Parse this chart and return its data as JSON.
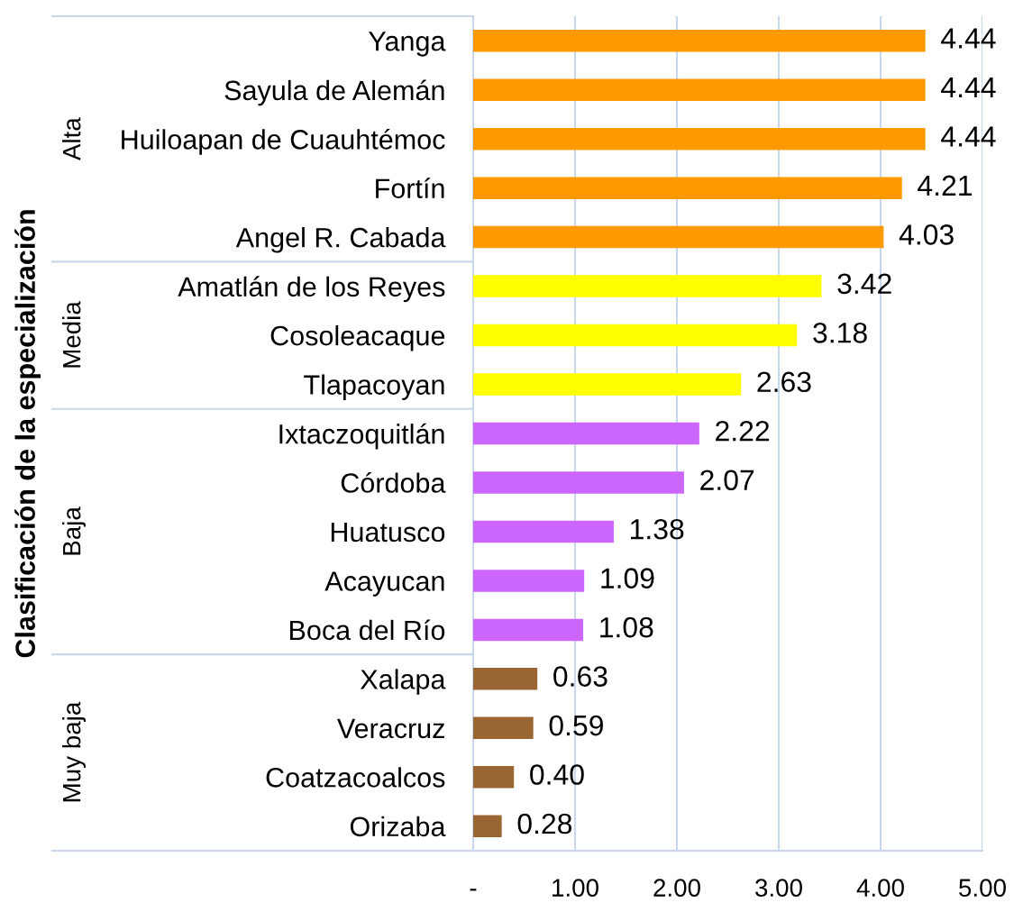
{
  "chart_data": {
    "type": "bar",
    "orientation": "horizontal",
    "ylabel": "Clasificación de la especialización",
    "categories": [
      "Yanga",
      "Sayula de Alemán",
      "Huiloapan de Cuauhtémoc",
      "Fortín",
      "Angel R. Cabada",
      "Amatlán de los Reyes",
      "Cosoleacaque",
      "Tlapacoyan",
      "Ixtaczoquitlán",
      "Córdoba",
      "Huatusco",
      "Acayucan",
      "Boca del Río",
      "Xalapa",
      "Veracruz",
      "Coatzacoalcos",
      "Orizaba"
    ],
    "series": [
      {
        "color": "#ff9900",
        "values": [
          4.44,
          4.44,
          4.44,
          4.21,
          4.03,
          null,
          null,
          null,
          null,
          null,
          null,
          null,
          null,
          null,
          null,
          null,
          null
        ],
        "value_labels": [
          "4.44",
          "4.44",
          "4.44",
          "4.21",
          "4.03",
          null,
          null,
          null,
          null,
          null,
          null,
          null,
          null,
          null,
          null,
          null,
          null
        ]
      },
      {
        "color": "#ffff00",
        "values": [
          null,
          null,
          null,
          null,
          null,
          3.42,
          3.18,
          2.63,
          null,
          null,
          null,
          null,
          null,
          null,
          null,
          null,
          null
        ],
        "value_labels": [
          null,
          null,
          null,
          null,
          null,
          "3.42",
          "3.18",
          "2.63",
          null,
          null,
          null,
          null,
          null,
          null,
          null,
          null,
          null
        ]
      },
      {
        "color": "#cc66ff",
        "values": [
          null,
          null,
          null,
          null,
          null,
          null,
          null,
          null,
          2.22,
          2.07,
          1.38,
          1.09,
          1.08,
          null,
          null,
          null,
          null
        ],
        "value_labels": [
          null,
          null,
          null,
          null,
          null,
          null,
          null,
          null,
          "2.22",
          "2.07",
          "1.38",
          "1.09",
          "1.08",
          null,
          null,
          null,
          null
        ]
      },
      {
        "color": "#996633",
        "values": [
          null,
          null,
          null,
          null,
          null,
          null,
          null,
          null,
          null,
          null,
          null,
          null,
          null,
          0.63,
          0.59,
          0.4,
          0.28
        ],
        "value_labels": [
          null,
          null,
          null,
          null,
          null,
          null,
          null,
          null,
          null,
          null,
          null,
          null,
          null,
          "0.63",
          "0.59",
          "0.40",
          "0.28"
        ]
      }
    ],
    "annotations": [
      "Alta",
      "Media",
      "Baja",
      "Muy baja"
    ],
    "xlim": [
      0,
      5
    ],
    "xticks": [
      {
        "value": 0,
        "label": "-"
      },
      {
        "value": 1,
        "label": "1.00"
      },
      {
        "value": 2,
        "label": "2.00"
      },
      {
        "value": 3,
        "label": "3.00"
      },
      {
        "value": 4,
        "label": "4.00"
      },
      {
        "value": 5,
        "label": "5.00"
      }
    ],
    "grid": "x"
  }
}
